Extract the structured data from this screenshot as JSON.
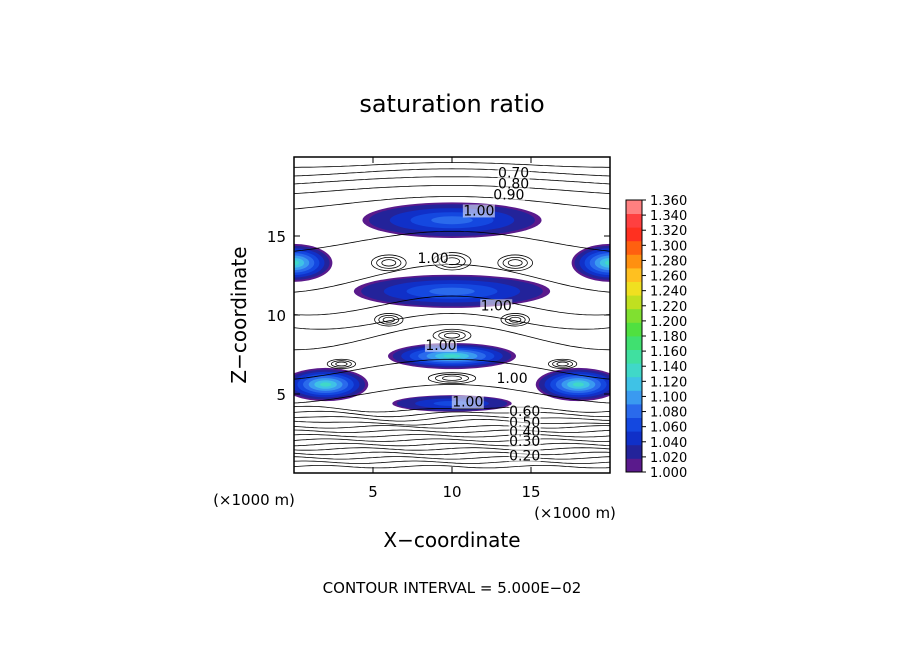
{
  "chart_data": {
    "type": "contour",
    "title": "saturation ratio",
    "xlabel": "X−coordinate",
    "ylabel": "Z−coordinate",
    "x_unit": "(×1000 m)",
    "z_unit": "(×1000 m)",
    "xlim": [
      0,
      20
    ],
    "ylim": [
      0,
      20
    ],
    "x_ticks": [
      5,
      10,
      15
    ],
    "y_ticks": [
      5,
      10,
      15
    ],
    "footer": "CONTOUR INTERVAL = 5.000E−02",
    "contour_interval": 0.05,
    "contour_labels": [
      {
        "text": "0.70",
        "x": 13.9,
        "z": 18.7
      },
      {
        "text": "0.80",
        "x": 13.9,
        "z": 18.0
      },
      {
        "text": "0.90",
        "x": 13.6,
        "z": 17.3
      },
      {
        "text": "1.00",
        "x": 11.7,
        "z": 16.3
      },
      {
        "text": "1.00",
        "x": 8.8,
        "z": 13.3
      },
      {
        "text": "1.00",
        "x": 12.8,
        "z": 10.3
      },
      {
        "text": "1.00",
        "x": 9.3,
        "z": 7.8
      },
      {
        "text": "1.00",
        "x": 13.8,
        "z": 5.7
      },
      {
        "text": "1.00",
        "x": 11.0,
        "z": 4.2
      },
      {
        "text": "0.60",
        "x": 14.6,
        "z": 3.6
      },
      {
        "text": "0.50",
        "x": 14.6,
        "z": 2.9
      },
      {
        "text": "0.40",
        "x": 14.6,
        "z": 2.3
      },
      {
        "text": "0.30",
        "x": 14.6,
        "z": 1.7
      },
      {
        "text": "0.20",
        "x": 14.6,
        "z": 0.8
      }
    ],
    "colorbar": {
      "min": 1.0,
      "max": 1.36,
      "step": 0.02,
      "labels": [
        "1.000",
        "1.020",
        "1.040",
        "1.060",
        "1.080",
        "1.100",
        "1.120",
        "1.140",
        "1.160",
        "1.180",
        "1.200",
        "1.220",
        "1.240",
        "1.260",
        "1.280",
        "1.300",
        "1.320",
        "1.340",
        "1.360"
      ],
      "colors": [
        "#5a1a8c",
        "#23239a",
        "#1030c8",
        "#1448e0",
        "#2a6aec",
        "#3a9af0",
        "#3fc2e6",
        "#40d8c8",
        "#40e0a0",
        "#40e070",
        "#50e040",
        "#80e030",
        "#c0e020",
        "#f0e020",
        "#ffc020",
        "#ff9010",
        "#ff6010",
        "#ff3020",
        "#ff4040",
        "#ff8080"
      ]
    },
    "supersaturation_bands": [
      {
        "x_center": 10.0,
        "z_center": 16.0,
        "amplitude": 0.075,
        "sx": 4.2,
        "sz": 0.75
      },
      {
        "x_center": 0.0,
        "z_center": 13.3,
        "amplitude": 0.13,
        "sx": 1.8,
        "sz": 0.8
      },
      {
        "x_center": 20.0,
        "z_center": 13.3,
        "amplitude": 0.13,
        "sx": 1.8,
        "sz": 0.8
      },
      {
        "x_center": 10.0,
        "z_center": 11.5,
        "amplitude": 0.07,
        "sx": 4.6,
        "sz": 0.7
      },
      {
        "x_center": 10.0,
        "z_center": 7.4,
        "amplitude": 0.13,
        "sx": 3.0,
        "sz": 0.55
      },
      {
        "x_center": 2.0,
        "z_center": 5.6,
        "amplitude": 0.12,
        "sx": 2.0,
        "sz": 0.7
      },
      {
        "x_center": 18.0,
        "z_center": 5.6,
        "amplitude": 0.12,
        "sx": 2.0,
        "sz": 0.7
      },
      {
        "x_center": 10.0,
        "z_center": 4.4,
        "amplitude": 0.04,
        "sx": 2.8,
        "sz": 0.35
      }
    ]
  }
}
